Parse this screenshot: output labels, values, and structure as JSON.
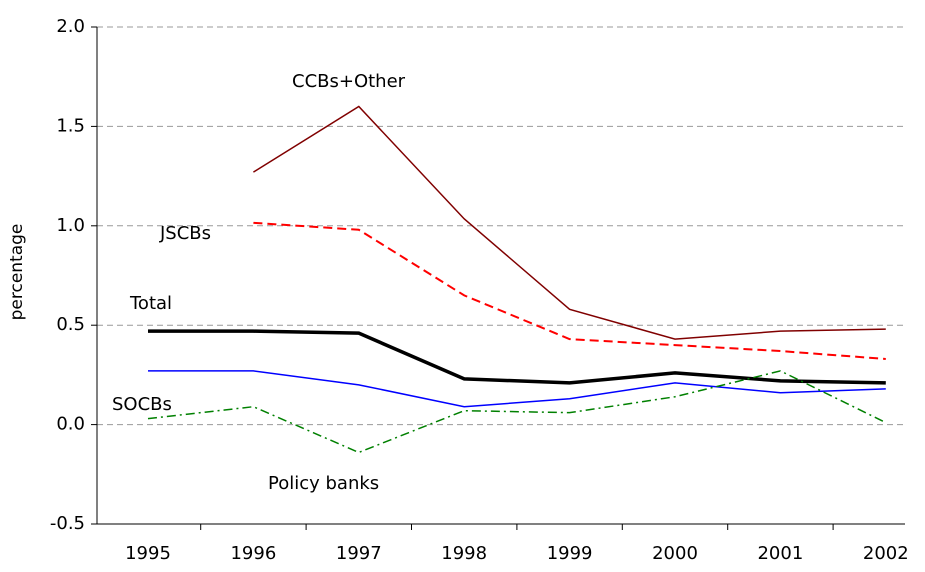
{
  "chart_data": {
    "type": "line",
    "y_label": "percentage",
    "categories": [
      "1995",
      "1996",
      "1997",
      "1998",
      "1999",
      "2000",
      "2001",
      "2002"
    ],
    "series": [
      {
        "name": "CCBs+Other",
        "color": "#800000",
        "values": [
          null,
          1.27,
          1.6,
          1.035,
          0.58,
          0.43,
          0.47,
          0.48
        ]
      },
      {
        "name": "JSCBs",
        "color": "#ff0000",
        "values": [
          null,
          1.015,
          0.98,
          0.65,
          0.43,
          0.4,
          0.37,
          0.33
        ]
      },
      {
        "name": "Total",
        "color": "#000000",
        "values": [
          0.47,
          0.47,
          0.46,
          0.23,
          0.21,
          0.26,
          0.22,
          0.21
        ]
      },
      {
        "name": "SOCBs",
        "color": "#0000ff",
        "values": [
          0.27,
          0.27,
          0.2,
          0.09,
          0.13,
          0.21,
          0.16,
          0.18
        ]
      },
      {
        "name": "Policy banks",
        "color": "#008000",
        "values": [
          0.03,
          0.09,
          -0.14,
          0.07,
          0.06,
          0.14,
          0.27,
          0.01
        ]
      }
    ],
    "ylim": [
      -0.5,
      2.0
    ],
    "yticks": [
      -0.5,
      {
        "value": 0,
        "label": "0.0"
      },
      0.5,
      {
        "value": 1,
        "label": "1.0"
      },
      1.5,
      {
        "value": 2,
        "label": "2.0"
      }
    ],
    "grid": true
  }
}
